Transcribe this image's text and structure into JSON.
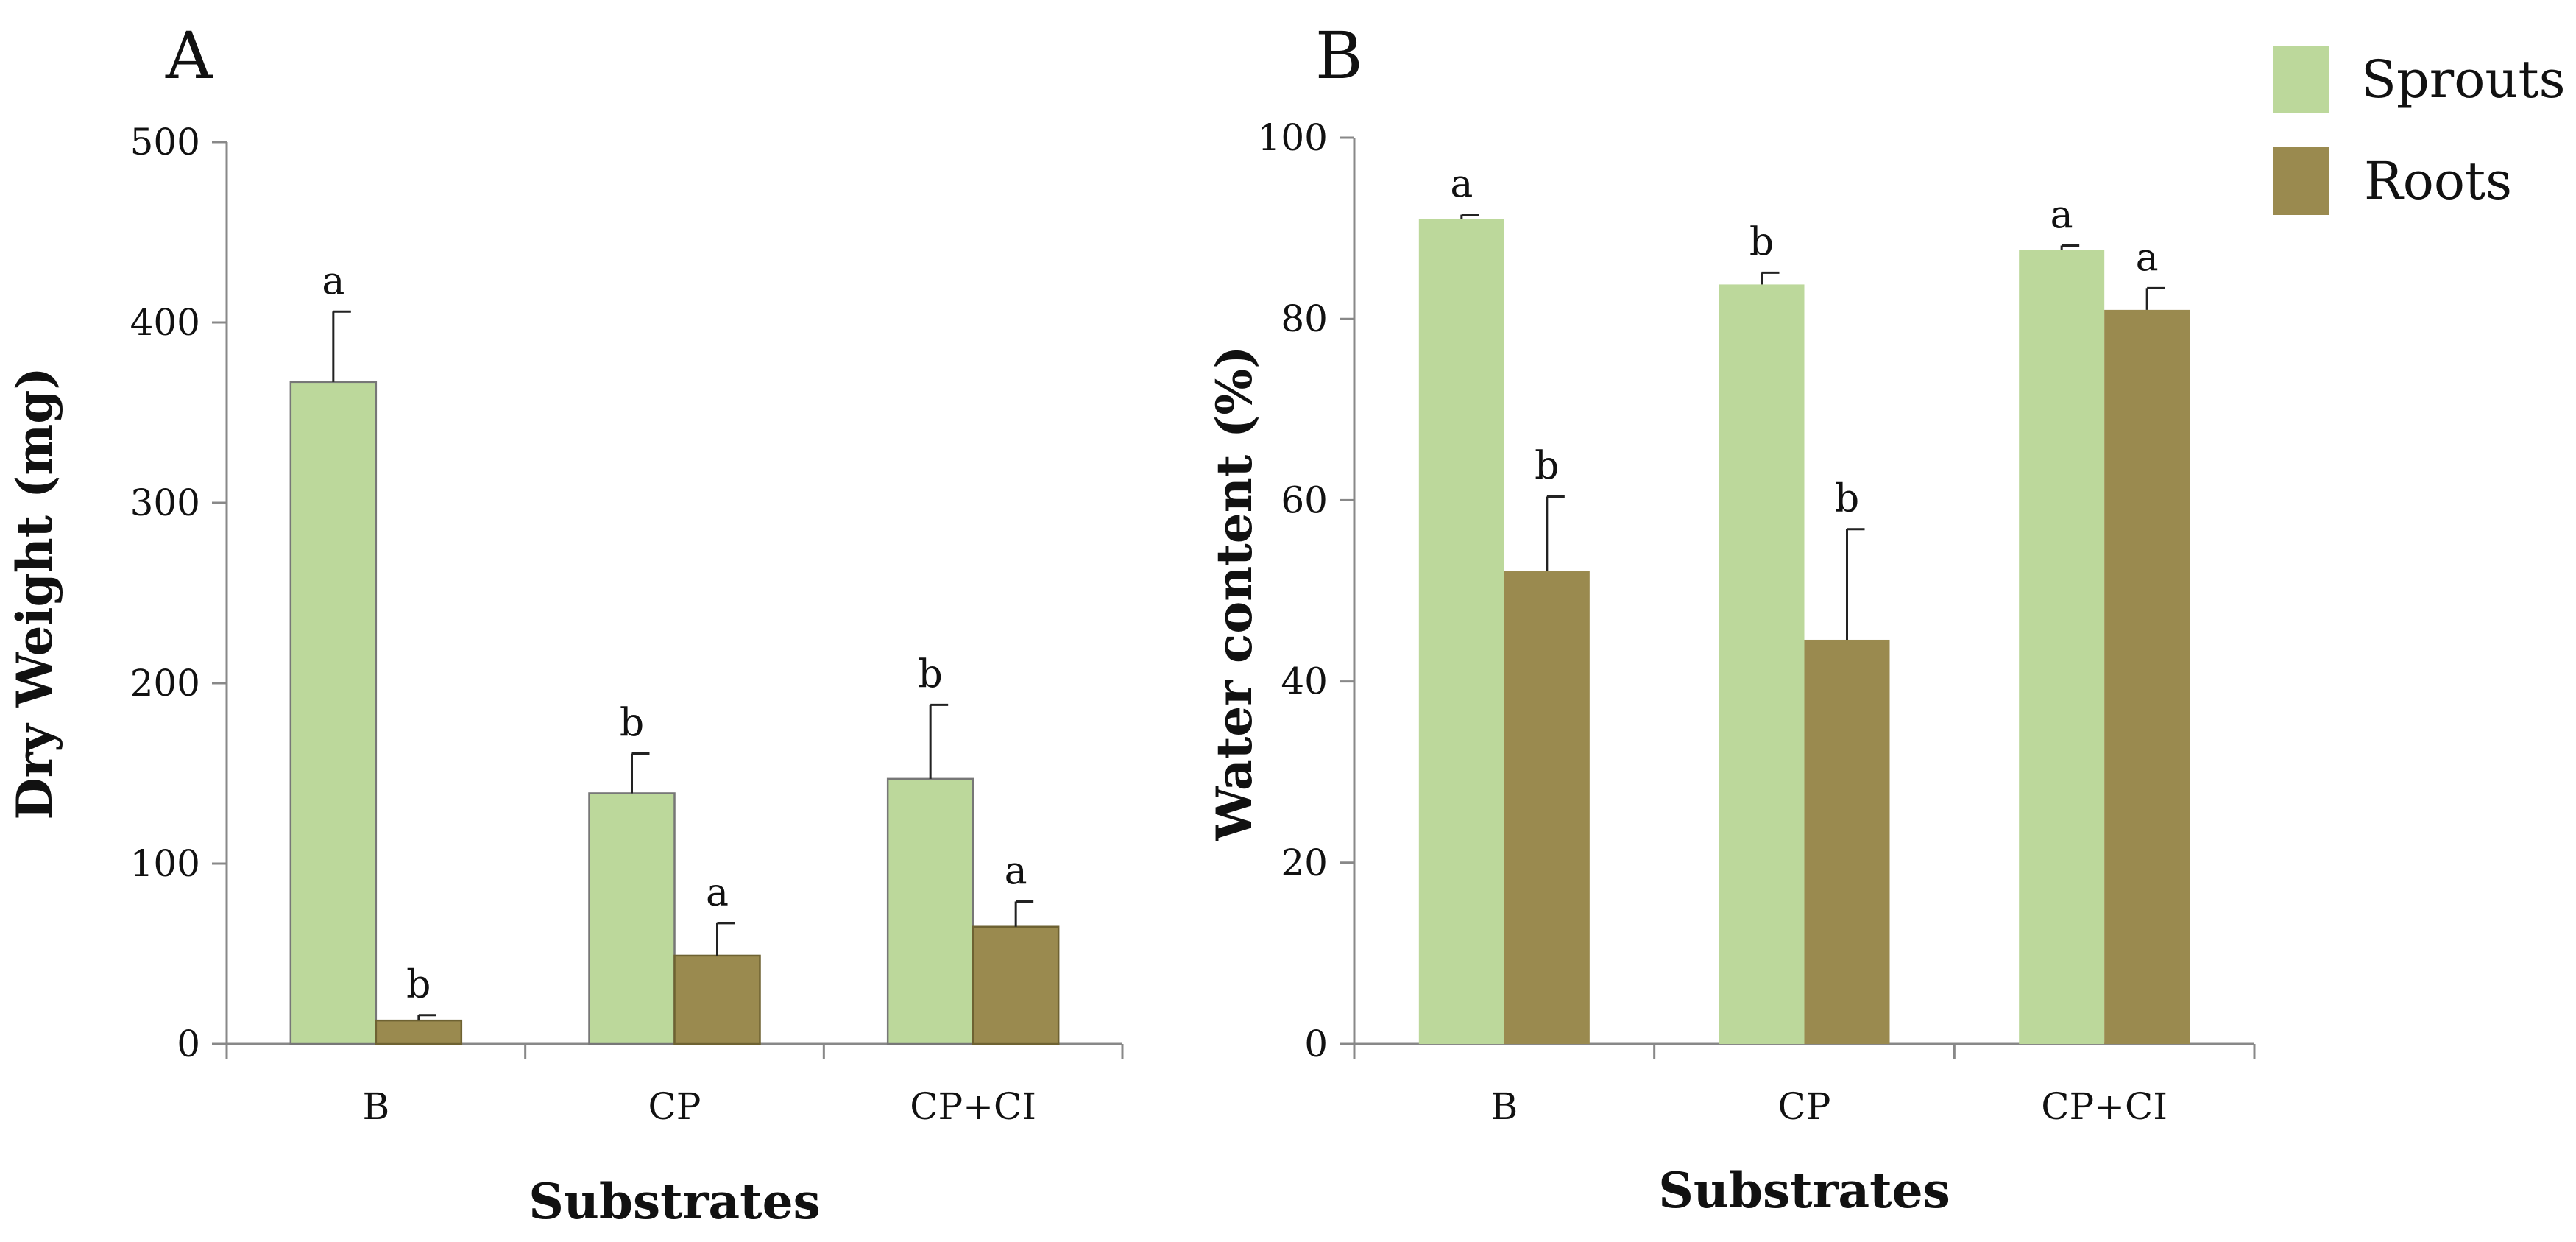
{
  "colors": {
    "sprouts": "#bcd89b",
    "roots": "#9a8a4f",
    "axis": "#888888",
    "sprouts_stroke": "#777777",
    "roots_stroke": "#6e6232",
    "error_bar": "#222222"
  },
  "legend": {
    "placement": "top-right",
    "items": [
      {
        "label": "Sprouts",
        "color": "#bcd89b"
      },
      {
        "label": "Roots",
        "color": "#9a8a4f"
      }
    ]
  },
  "chart_data": [
    {
      "type": "bar",
      "panel": "A",
      "categories": [
        "B",
        "CP",
        "CP+CI"
      ],
      "xlabel": "Substrates",
      "ylabel": "Dry Weight (mg)",
      "ylim": [
        0,
        500
      ],
      "yticks": [
        0,
        100,
        200,
        300,
        400,
        500
      ],
      "grid": false,
      "bar_outline": true,
      "series": [
        {
          "name": "Sprouts",
          "values": [
            367,
            139,
            147
          ],
          "errors": [
            39,
            22,
            41
          ],
          "letters": [
            "a",
            "b",
            "b"
          ]
        },
        {
          "name": "Roots",
          "values": [
            13,
            49,
            65
          ],
          "errors": [
            3,
            18,
            14
          ],
          "letters": [
            "b",
            "a",
            "a"
          ]
        }
      ]
    },
    {
      "type": "bar",
      "panel": "B",
      "categories": [
        "B",
        "CP",
        "CP+CI"
      ],
      "xlabel": "Substrates",
      "ylabel": "Water content (%)",
      "ylim": [
        0,
        100
      ],
      "yticks": [
        0,
        20,
        40,
        60,
        80,
        100
      ],
      "grid": false,
      "bar_outline": false,
      "series": [
        {
          "name": "Sprouts",
          "values": [
            91,
            83.8,
            87.6
          ],
          "errors": [
            0.5,
            1.3,
            0.5
          ],
          "letters": [
            "a",
            "b",
            "a"
          ]
        },
        {
          "name": "Roots",
          "values": [
            52.2,
            44.6,
            81
          ],
          "errors": [
            8.2,
            12.2,
            2.4
          ],
          "letters": [
            "b",
            "b",
            "a"
          ]
        }
      ]
    }
  ]
}
